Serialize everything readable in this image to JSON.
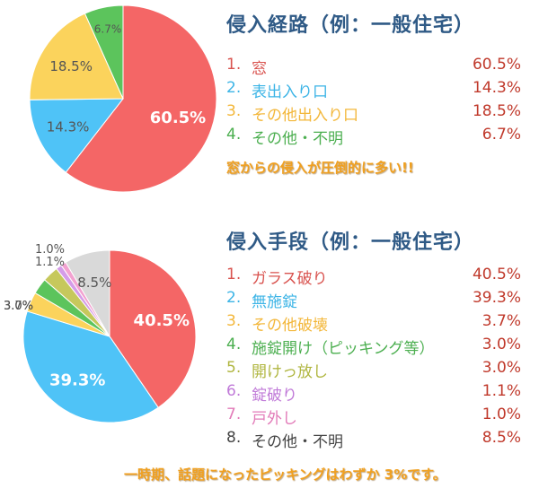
{
  "chart_data": [
    {
      "type": "pie",
      "title": "侵入経路（例：一般住宅）",
      "slices": [
        {
          "no": "1.",
          "label": "窓",
          "value": 60.5,
          "display": "60.5%",
          "color": "#f46666",
          "text_color": "#d9534f"
        },
        {
          "no": "2.",
          "label": "表出入り口",
          "value": 14.3,
          "display": "14.3%",
          "color": "#4fc3f7",
          "text_color": "#3cb4e6"
        },
        {
          "no": "3.",
          "label": "その他出入り口",
          "value": 18.5,
          "display": "18.5%",
          "color": "#fbd35c",
          "text_color": "#f3b73a"
        },
        {
          "no": "4.",
          "label": "その他・不明",
          "value": 6.7,
          "display": "6.7%",
          "color": "#5cc45c",
          "text_color": "#4caf50"
        }
      ],
      "value_text_color": "#c0392b",
      "callout": "窓からの侵入が圧倒的に多い!!"
    },
    {
      "type": "pie",
      "title": "侵入手段（例：一般住宅）",
      "slices": [
        {
          "no": "1.",
          "label": "ガラス破り",
          "value": 40.5,
          "display": "40.5%",
          "color": "#f46666",
          "text_color": "#d9534f"
        },
        {
          "no": "2.",
          "label": "無施錠",
          "value": 39.3,
          "display": "39.3%",
          "color": "#4fc3f7",
          "text_color": "#3cb4e6"
        },
        {
          "no": "3.",
          "label": "その他破壊",
          "value": 3.7,
          "display": "3.7%",
          "color": "#fbd35c",
          "text_color": "#f3b73a"
        },
        {
          "no": "4.",
          "label": "施錠開け（ピッキング等）",
          "value": 3.0,
          "display": "3.0%",
          "color": "#5cc45c",
          "text_color": "#4caf50"
        },
        {
          "no": "5.",
          "label": "開けっ放し",
          "value": 3.0,
          "display": "3.0%",
          "color": "#c6c85c",
          "text_color": "#b0b640"
        },
        {
          "no": "6.",
          "label": "錠破り",
          "value": 1.1,
          "display": "1.1%",
          "color": "#d59ce8",
          "text_color": "#c07ad8"
        },
        {
          "no": "7.",
          "label": "戸外し",
          "value": 1.0,
          "display": "1.0%",
          "color": "#f2a2d0",
          "text_color": "#e27ab8"
        },
        {
          "no": "8.",
          "label": "その他・不明",
          "value": 8.5,
          "display": "8.5%",
          "color": "#d9d9d9",
          "text_color": "#444444"
        }
      ],
      "value_text_color": "#c0392b",
      "callout": "一時期、話題になったピッキングはわずか 3%です。"
    }
  ]
}
